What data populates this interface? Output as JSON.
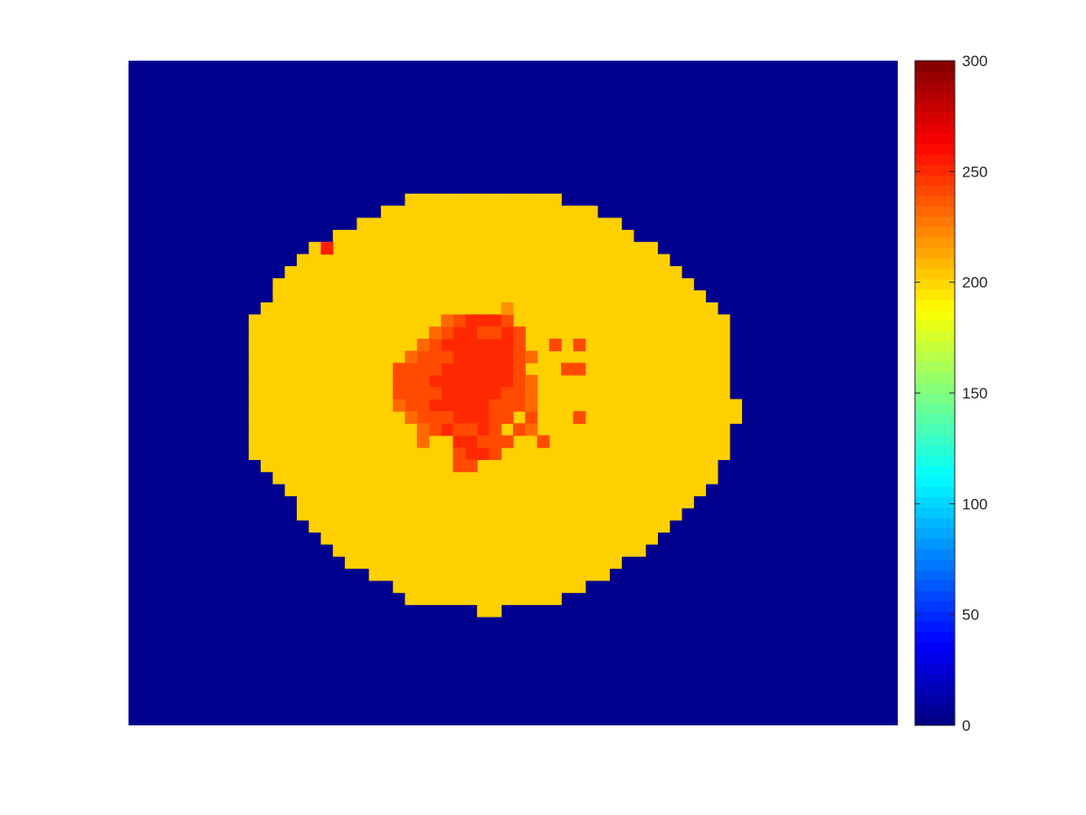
{
  "chart_data": {
    "type": "heatmap",
    "title": "",
    "xlabel": "",
    "ylabel": "",
    "grid": false,
    "axes_visible": false,
    "colormap": "jet",
    "grid_size": {
      "cols": 64,
      "rows": 55
    },
    "background_value": 0,
    "colorbar": {
      "location": "right",
      "range": [
        0,
        300
      ],
      "levels": 64,
      "ticks": [
        0,
        50,
        100,
        150,
        200,
        250,
        300
      ],
      "tick_labels": [
        "0",
        "50",
        "100",
        "150",
        "200",
        "250",
        "300"
      ]
    },
    "regions": [
      {
        "name": "outer",
        "value": 208,
        "color": "#FFD000",
        "row_spans": [
          [
            11,
            23,
            35
          ],
          [
            12,
            21,
            38
          ],
          [
            13,
            19,
            40
          ],
          [
            14,
            17,
            41
          ],
          [
            15,
            15,
            43
          ],
          [
            16,
            14,
            44
          ],
          [
            17,
            13,
            45
          ],
          [
            18,
            12,
            46
          ],
          [
            19,
            12,
            47
          ],
          [
            20,
            11,
            48
          ],
          [
            21,
            10,
            49
          ],
          [
            22,
            10,
            49
          ],
          [
            23,
            10,
            49
          ],
          [
            24,
            10,
            49
          ],
          [
            25,
            10,
            49
          ],
          [
            26,
            10,
            49
          ],
          [
            27,
            10,
            49
          ],
          [
            28,
            10,
            49
          ],
          [
            29,
            10,
            49
          ],
          [
            30,
            10,
            49
          ],
          [
            31,
            10,
            49
          ],
          [
            32,
            10,
            49
          ],
          [
            33,
            11,
            48
          ],
          [
            34,
            12,
            48
          ],
          [
            35,
            13,
            47
          ],
          [
            36,
            14,
            46
          ],
          [
            37,
            14,
            45
          ],
          [
            38,
            15,
            44
          ],
          [
            39,
            16,
            43
          ],
          [
            40,
            17,
            42
          ],
          [
            41,
            18,
            40
          ],
          [
            42,
            20,
            39
          ],
          [
            43,
            22,
            37
          ],
          [
            44,
            23,
            35
          ]
        ],
        "extra_cells": [
          [
            28,
            50
          ],
          [
            29,
            50
          ],
          [
            45,
            29
          ],
          [
            45,
            30
          ]
        ]
      },
      {
        "name": "core",
        "value": 258,
        "color": "#FF2800",
        "cells": [
          [
            21,
            28
          ],
          [
            21,
            29
          ],
          [
            21,
            30
          ],
          [
            22,
            27
          ],
          [
            22,
            28
          ],
          [
            22,
            31
          ],
          [
            23,
            26
          ],
          [
            23,
            27
          ],
          [
            23,
            28
          ],
          [
            23,
            29
          ],
          [
            23,
            30
          ],
          [
            23,
            31
          ],
          [
            24,
            27
          ],
          [
            24,
            28
          ],
          [
            24,
            29
          ],
          [
            24,
            30
          ],
          [
            24,
            31
          ],
          [
            25,
            26
          ],
          [
            25,
            27
          ],
          [
            25,
            28
          ],
          [
            25,
            29
          ],
          [
            25,
            30
          ],
          [
            25,
            31
          ],
          [
            26,
            25
          ],
          [
            26,
            26
          ],
          [
            26,
            27
          ],
          [
            26,
            28
          ],
          [
            26,
            29
          ],
          [
            26,
            30
          ],
          [
            26,
            31
          ],
          [
            27,
            26
          ],
          [
            27,
            27
          ],
          [
            27,
            28
          ],
          [
            27,
            29
          ],
          [
            27,
            30
          ],
          [
            28,
            25
          ],
          [
            28,
            26
          ],
          [
            28,
            27
          ],
          [
            28,
            28
          ],
          [
            28,
            29
          ],
          [
            29,
            27
          ],
          [
            29,
            28
          ],
          [
            29,
            29
          ],
          [
            30,
            26
          ],
          [
            30,
            29
          ],
          [
            31,
            27
          ],
          [
            31,
            28
          ],
          [
            32,
            28
          ],
          [
            32,
            29
          ]
        ]
      },
      {
        "name": "core-rim",
        "value": 242,
        "color": "#FF4A00",
        "cells": [
          [
            21,
            27
          ],
          [
            21,
            31
          ],
          [
            22,
            26
          ],
          [
            22,
            29
          ],
          [
            22,
            30
          ],
          [
            22,
            32
          ],
          [
            23,
            25
          ],
          [
            23,
            32
          ],
          [
            23,
            35
          ],
          [
            23,
            37
          ],
          [
            24,
            24
          ],
          [
            24,
            25
          ],
          [
            24,
            26
          ],
          [
            24,
            32
          ],
          [
            25,
            22
          ],
          [
            25,
            23
          ],
          [
            25,
            24
          ],
          [
            25,
            25
          ],
          [
            25,
            32
          ],
          [
            25,
            36
          ],
          [
            25,
            37
          ],
          [
            26,
            22
          ],
          [
            26,
            23
          ],
          [
            26,
            24
          ],
          [
            26,
            32
          ],
          [
            27,
            22
          ],
          [
            27,
            23
          ],
          [
            27,
            24
          ],
          [
            27,
            25
          ],
          [
            27,
            31
          ],
          [
            27,
            32
          ],
          [
            28,
            23
          ],
          [
            28,
            24
          ],
          [
            28,
            30
          ],
          [
            28,
            31
          ],
          [
            28,
            32
          ],
          [
            29,
            24
          ],
          [
            29,
            25
          ],
          [
            29,
            26
          ],
          [
            29,
            30
          ],
          [
            29,
            31
          ],
          [
            29,
            33
          ],
          [
            29,
            37
          ],
          [
            30,
            25
          ],
          [
            30,
            27
          ],
          [
            30,
            28
          ],
          [
            30,
            30
          ],
          [
            30,
            32
          ],
          [
            31,
            29
          ],
          [
            31,
            30
          ],
          [
            31,
            31
          ],
          [
            31,
            34
          ],
          [
            32,
            27
          ],
          [
            32,
            30
          ],
          [
            33,
            27
          ],
          [
            33,
            28
          ]
        ]
      },
      {
        "name": "core-edge",
        "value": 228,
        "color": "#FF6A00",
        "cells": [
          [
            21,
            26
          ],
          [
            22,
            25
          ],
          [
            23,
            24
          ],
          [
            24,
            23
          ],
          [
            24,
            33
          ],
          [
            26,
            33
          ],
          [
            27,
            33
          ],
          [
            28,
            22
          ],
          [
            28,
            33
          ],
          [
            29,
            23
          ],
          [
            30,
            24
          ],
          [
            30,
            33
          ],
          [
            31,
            24
          ]
        ]
      },
      {
        "name": "core-top",
        "value": 215,
        "color": "#FF9000",
        "cells": [
          [
            20,
            31
          ]
        ]
      },
      {
        "name": "speck",
        "value": 262,
        "color": "#FF1E00",
        "cells": [
          [
            15,
            16
          ]
        ]
      }
    ]
  }
}
